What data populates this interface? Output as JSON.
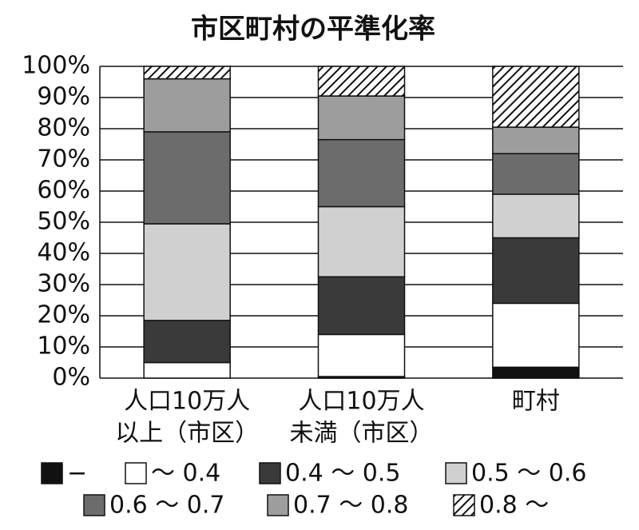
{
  "chart_data": {
    "type": "stacked_bar",
    "title": "市区町村の平準化率",
    "categories": [
      [
        "人口10万人",
        "以上（市区）"
      ],
      [
        "人口10万人",
        "未満（市区）"
      ],
      [
        "町村"
      ]
    ],
    "series": [
      {
        "name": "−",
        "color": "#111111",
        "values": [
          0,
          0.5,
          3.5
        ]
      },
      {
        "name": "～ 0.4",
        "color": "#ffffff",
        "values": [
          5,
          13.5,
          20.5
        ]
      },
      {
        "name": "0.4 ～ 0.5",
        "color": "#3a3a3a",
        "values": [
          13.5,
          18.5,
          21
        ]
      },
      {
        "name": "0.5 ～ 0.6",
        "color": "#d0d0d0",
        "values": [
          31,
          22.5,
          14
        ]
      },
      {
        "name": "0.6 ～ 0.7",
        "color": "#6c6c6c",
        "values": [
          29.5,
          21.5,
          13
        ]
      },
      {
        "name": "0.7 ～ 0.8",
        "color": "#9d9d9d",
        "values": [
          17,
          14,
          8.5
        ]
      },
      {
        "name": "0.8 ～",
        "color": "#ffffff",
        "hatch": true,
        "values": [
          4,
          9.5,
          19.5
        ]
      }
    ],
    "ylim": [
      0,
      100
    ],
    "yticks": [
      {
        "value": 0,
        "label": "0%"
      },
      {
        "value": 10,
        "label": "10%"
      },
      {
        "value": 20,
        "label": "20%"
      },
      {
        "value": 30,
        "label": "30%"
      },
      {
        "value": 40,
        "label": "40%"
      },
      {
        "value": 50,
        "label": "50%"
      },
      {
        "value": 60,
        "label": "60%"
      },
      {
        "value": 70,
        "label": "70%"
      },
      {
        "value": 80,
        "label": "80%"
      },
      {
        "value": 90,
        "label": "90%"
      },
      {
        "value": 100,
        "label": "100%"
      }
    ],
    "grid": true
  }
}
